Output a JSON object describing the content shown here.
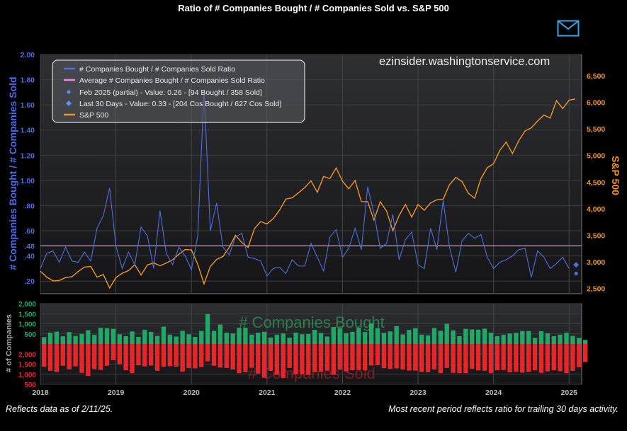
{
  "page": {
    "title": "Ratio of # Companies Bought / # Companies Sold vs. S&P 500",
    "footer_left": "Reflects data as of 2/11/25.",
    "footer_right": "Most recent period reflects ratio for trailing 30 days activity.",
    "watermark": "ezinsider.washingtonservice.com",
    "email_icon": "envelope-icon"
  },
  "colors": {
    "ratio": "#4f6fdc",
    "sp500": "#f0961e",
    "average": "#e08ce0",
    "bought": "#1fa866",
    "sold": "#e8262a",
    "left_axis": "#4d6ae6",
    "right_axis": "#f0961e",
    "plot_bg_top": "#2e2f33",
    "plot_bg_bottom": "#151517"
  },
  "chart_data": [
    {
      "type": "line",
      "ylabel": "# Companies Bought / # Companies Sold",
      "y2label": "S&P 500",
      "ylim": [
        0.1,
        2.0
      ],
      "y2lim": [
        2400,
        6900
      ],
      "xlim": [
        "2018-01",
        "2025-03"
      ],
      "yticks": [
        "2.00",
        "1.80",
        "1.60",
        "1.40",
        "1.20",
        "1.00",
        ".80",
        ".60",
        ".40",
        ".20"
      ],
      "y_tick_values": [
        2.0,
        1.8,
        1.6,
        1.4,
        1.2,
        1.0,
        0.8,
        0.6,
        0.4,
        0.2
      ],
      "y2ticks": [
        "6,500",
        "6,000",
        "5,500",
        "5,000",
        "4,500",
        "4,000",
        "3,500",
        "3,000",
        "2,500"
      ],
      "y2_tick_values": [
        6500,
        6000,
        5500,
        5000,
        4500,
        4000,
        3500,
        3000,
        2500
      ],
      "xticks": [
        "2018",
        "2019",
        "2020",
        "2021",
        "2022",
        "2023",
        "2024",
        "2025"
      ],
      "average_label": ".48",
      "average": 0.48,
      "grid": true,
      "legend_position": "top-left",
      "legend": [
        "# Companies Bought / # Companies Sold Ratio",
        "Average # Companies Bought / # Companies Sold Ratio",
        "Feb 2025 (partial) - Value: 0.26 - [94 Bought / 358 Sold]",
        "Last 30 Days - Value: 0.33 - [204 Cos Bought / 627 Cos Sold]",
        "S&P 500"
      ],
      "series": [
        {
          "name": "# Companies Bought / # Companies Sold Ratio",
          "x": [
            "2018-01",
            "2018-02",
            "2018-03",
            "2018-04",
            "2018-05",
            "2018-06",
            "2018-07",
            "2018-08",
            "2018-09",
            "2018-10",
            "2018-11",
            "2018-12",
            "2019-01",
            "2019-02",
            "2019-03",
            "2019-04",
            "2019-05",
            "2019-06",
            "2019-07",
            "2019-08",
            "2019-09",
            "2019-10",
            "2019-11",
            "2019-12",
            "2020-01",
            "2020-02",
            "2020-03",
            "2020-04",
            "2020-05",
            "2020-06",
            "2020-07",
            "2020-08",
            "2020-09",
            "2020-10",
            "2020-11",
            "2020-12",
            "2021-01",
            "2021-02",
            "2021-03",
            "2021-04",
            "2021-05",
            "2021-06",
            "2021-07",
            "2021-08",
            "2021-09",
            "2021-10",
            "2021-11",
            "2021-12",
            "2022-01",
            "2022-02",
            "2022-03",
            "2022-04",
            "2022-05",
            "2022-06",
            "2022-07",
            "2022-08",
            "2022-09",
            "2022-10",
            "2022-11",
            "2022-12",
            "2023-01",
            "2023-02",
            "2023-03",
            "2023-04",
            "2023-05",
            "2023-06",
            "2023-07",
            "2023-08",
            "2023-09",
            "2023-10",
            "2023-11",
            "2023-12",
            "2024-01",
            "2024-02",
            "2024-03",
            "2024-04",
            "2024-05",
            "2024-06",
            "2024-07",
            "2024-08",
            "2024-09",
            "2024-10",
            "2024-11",
            "2024-12",
            "2025-01"
          ],
          "values": [
            0.3,
            0.42,
            0.44,
            0.35,
            0.47,
            0.36,
            0.35,
            0.43,
            0.36,
            0.62,
            0.72,
            0.94,
            0.48,
            0.3,
            0.43,
            0.33,
            0.63,
            0.56,
            0.3,
            0.76,
            0.42,
            0.33,
            0.47,
            0.4,
            0.29,
            0.56,
            1.72,
            0.6,
            0.82,
            0.47,
            0.41,
            0.55,
            0.58,
            0.39,
            0.38,
            0.36,
            0.24,
            0.3,
            0.31,
            0.26,
            0.37,
            0.32,
            0.32,
            0.5,
            0.39,
            0.28,
            0.55,
            0.61,
            0.39,
            0.46,
            0.62,
            0.45,
            0.95,
            0.74,
            0.46,
            0.5,
            0.73,
            0.37,
            0.53,
            0.59,
            0.33,
            0.3,
            0.62,
            0.45,
            0.84,
            0.47,
            0.27,
            0.52,
            0.58,
            0.54,
            0.57,
            0.39,
            0.3,
            0.35,
            0.37,
            0.4,
            0.45,
            0.46,
            0.23,
            0.44,
            0.39,
            0.3,
            0.34,
            0.39,
            0.3
          ]
        },
        {
          "name": "S&P 500",
          "x": [
            "2018-01",
            "2018-02",
            "2018-03",
            "2018-04",
            "2018-05",
            "2018-06",
            "2018-07",
            "2018-08",
            "2018-09",
            "2018-10",
            "2018-11",
            "2018-12",
            "2019-01",
            "2019-02",
            "2019-03",
            "2019-04",
            "2019-05",
            "2019-06",
            "2019-07",
            "2019-08",
            "2019-09",
            "2019-10",
            "2019-11",
            "2019-12",
            "2020-01",
            "2020-02",
            "2020-03",
            "2020-04",
            "2020-05",
            "2020-06",
            "2020-07",
            "2020-08",
            "2020-09",
            "2020-10",
            "2020-11",
            "2020-12",
            "2021-01",
            "2021-02",
            "2021-03",
            "2021-04",
            "2021-05",
            "2021-06",
            "2021-07",
            "2021-08",
            "2021-09",
            "2021-10",
            "2021-11",
            "2021-12",
            "2022-01",
            "2022-02",
            "2022-03",
            "2022-04",
            "2022-05",
            "2022-06",
            "2022-07",
            "2022-08",
            "2022-09",
            "2022-10",
            "2022-11",
            "2022-12",
            "2023-01",
            "2023-02",
            "2023-03",
            "2023-04",
            "2023-05",
            "2023-06",
            "2023-07",
            "2023-08",
            "2023-09",
            "2023-10",
            "2023-11",
            "2023-12",
            "2024-01",
            "2024-02",
            "2024-03",
            "2024-04",
            "2024-05",
            "2024-06",
            "2024-07",
            "2024-08",
            "2024-09",
            "2024-10",
            "2024-11",
            "2024-12",
            "2025-01",
            "2025-02"
          ],
          "values": [
            2823,
            2714,
            2641,
            2648,
            2705,
            2718,
            2816,
            2901,
            2914,
            2711,
            2760,
            2507,
            2704,
            2784,
            2834,
            2946,
            2752,
            2942,
            2980,
            2926,
            2977,
            3038,
            3141,
            3231,
            3225,
            2954,
            2585,
            2912,
            3044,
            3100,
            3271,
            3500,
            3363,
            3270,
            3622,
            3756,
            3714,
            3811,
            3973,
            4181,
            4204,
            4298,
            4395,
            4523,
            4308,
            4605,
            4567,
            4766,
            4516,
            4374,
            4530,
            4132,
            4132,
            3785,
            4130,
            3955,
            3586,
            3872,
            4080,
            3840,
            4077,
            3970,
            4109,
            4169,
            4180,
            4450,
            4589,
            4508,
            4288,
            4194,
            4568,
            4770,
            4846,
            5096,
            5254,
            5036,
            5278,
            5460,
            5522,
            5648,
            5762,
            5705,
            6032,
            5882,
            6041,
            6066
          ]
        }
      ],
      "markers": [
        {
          "name": "Feb 2025 (partial)",
          "x": "2025-02",
          "value": 0.26
        },
        {
          "name": "Last 30 Days",
          "x": "2025-02",
          "value": 0.33
        }
      ]
    },
    {
      "type": "bar",
      "ylabel": "# of Companies",
      "yticks_top": [
        "2,000",
        "1,500",
        "1,000",
        "500"
      ],
      "yticks_bottom": [
        "500",
        "1,000",
        "1,500",
        "2,000"
      ],
      "tick_values": [
        2000,
        1500,
        1000,
        500
      ],
      "ylim": [
        -2000,
        2000
      ],
      "label_bought": "# Companies Bought",
      "label_sold": "# Companies Sold",
      "series": [
        {
          "name": "# Companies Bought",
          "values": [
            340,
            560,
            610,
            380,
            590,
            400,
            500,
            680,
            450,
            800,
            780,
            750,
            480,
            390,
            620,
            350,
            700,
            600,
            400,
            860,
            460,
            370,
            650,
            480,
            350,
            640,
            1480,
            650,
            960,
            560,
            520,
            800,
            810,
            460,
            560,
            600,
            320,
            460,
            520,
            310,
            560,
            480,
            490,
            700,
            540,
            370,
            840,
            780,
            530,
            600,
            800,
            590,
            1020,
            780,
            550,
            620,
            880,
            470,
            700,
            780,
            460,
            420,
            790,
            650,
            1000,
            670,
            390,
            750,
            720,
            710,
            760,
            560,
            390,
            450,
            520,
            550,
            640,
            640,
            300,
            630,
            530,
            390,
            460,
            560,
            400,
            300,
            200
          ]
        },
        {
          "name": "# Companies Sold",
          "values": [
            1130,
            1330,
            1390,
            1080,
            1260,
            1110,
            1430,
            1580,
            1250,
            1290,
            1080,
            800,
            1000,
            1300,
            1440,
            1060,
            1110,
            1070,
            1330,
            1130,
            1100,
            1120,
            1380,
            1200,
            1210,
            1140,
            860,
            1080,
            1170,
            1190,
            1270,
            1450,
            1400,
            1180,
            1470,
            1670,
            1330,
            1530,
            1680,
            1190,
            1510,
            1500,
            1530,
            1400,
            1380,
            1320,
            1530,
            1280,
            1360,
            1300,
            1290,
            1310,
            1070,
            1050,
            1200,
            1240,
            1210,
            1270,
            1320,
            1320,
            1390,
            1400,
            1270,
            1440,
            1190,
            1430,
            1440,
            1440,
            1240,
            1310,
            1330,
            1440,
            1300,
            1290,
            1410,
            1380,
            1420,
            1390,
            1300,
            1430,
            1360,
            1300,
            1350,
            1440,
            1330,
            1150,
            900
          ]
        }
      ]
    }
  ]
}
